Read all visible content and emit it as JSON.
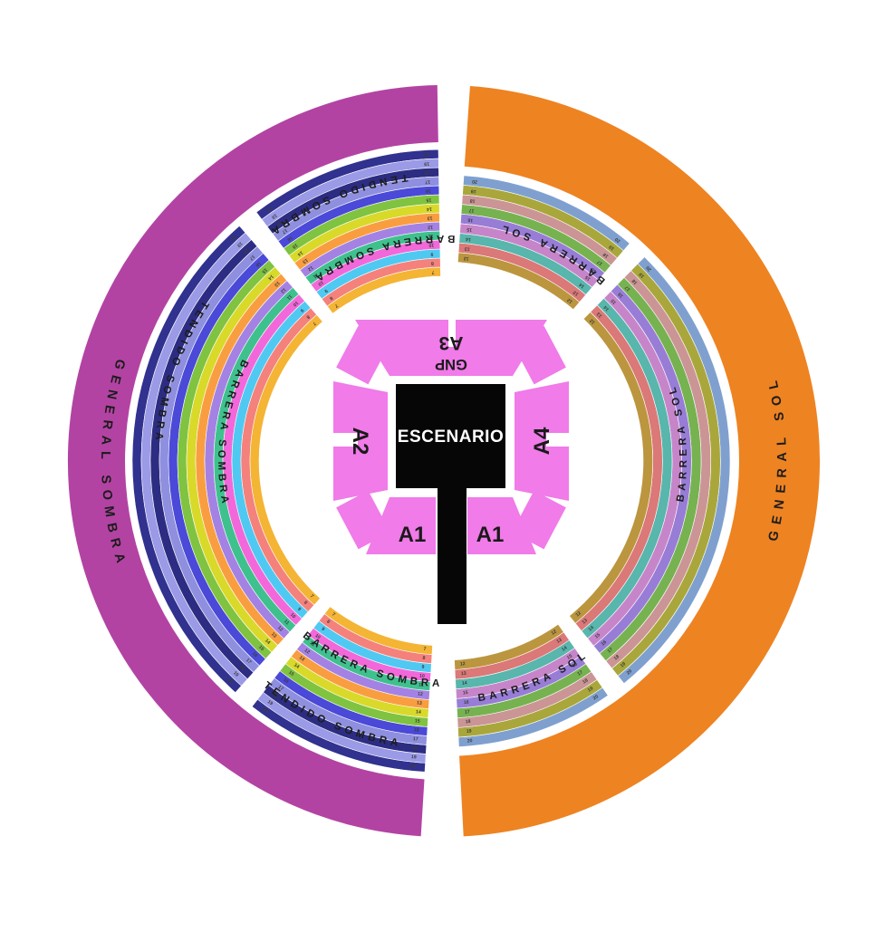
{
  "stage": {
    "escenario_label": "ESCENARIO",
    "sections": {
      "top_line1": "GNP",
      "top_line2": "A3",
      "left": "A2",
      "right": "A4",
      "bottom_left": "A1",
      "bottom_right": "A1"
    },
    "colors": {
      "stage": "#060606",
      "sections": "#f07be9",
      "stage_label": "#ffffff",
      "section_label": "#1a1a1a"
    }
  },
  "general": {
    "sombra": {
      "label": "GENERAL SOMBRA",
      "color": "#b343a3"
    },
    "sol": {
      "label": "GENERAL SOL",
      "color": "#ee8322"
    }
  },
  "sombra_band": {
    "labels": {
      "tendido": "TENDIDO SOMBRA",
      "barrera": "BARRERA SOMBRA"
    },
    "rings": [
      {
        "color": "#31318f",
        "row": "20"
      },
      {
        "color": "#9a9ae6",
        "row": "19"
      },
      {
        "color": "#2c2c82",
        "row": "18"
      },
      {
        "color": "#8f8fdf",
        "row": "17"
      },
      {
        "color": "#4a49d8",
        "row": "16"
      },
      {
        "color": "#7fc341",
        "row": "15"
      },
      {
        "color": "#d9d92a",
        "row": "14"
      },
      {
        "color": "#f99e40",
        "row": "13"
      },
      {
        "color": "#a382e4",
        "row": "12"
      },
      {
        "color": "#3fc18e",
        "row": "11"
      },
      {
        "color": "#f268da",
        "row": "10"
      },
      {
        "color": "#4fc9f2",
        "row": "9"
      },
      {
        "color": "#f4817c",
        "row": "8"
      },
      {
        "color": "#f4b434",
        "row": "7"
      }
    ]
  },
  "sol_band": {
    "labels": {
      "barrera": "BARRERA SOL"
    },
    "rings": [
      {
        "color": "#7fa0cf",
        "row": "20"
      },
      {
        "color": "#a9a73b",
        "row": "19"
      },
      {
        "color": "#cb9595",
        "row": "18"
      },
      {
        "color": "#77b250",
        "row": "17"
      },
      {
        "color": "#977dd6",
        "row": "16"
      },
      {
        "color": "#c785c9",
        "row": "15"
      },
      {
        "color": "#58b6ac",
        "row": "14"
      },
      {
        "color": "#db7878",
        "row": "13"
      },
      {
        "color": "#bb963f",
        "row": "12"
      }
    ]
  },
  "text_colors": {
    "arc_label": "#1c1c1c",
    "row_number": "#3c3c3c"
  }
}
